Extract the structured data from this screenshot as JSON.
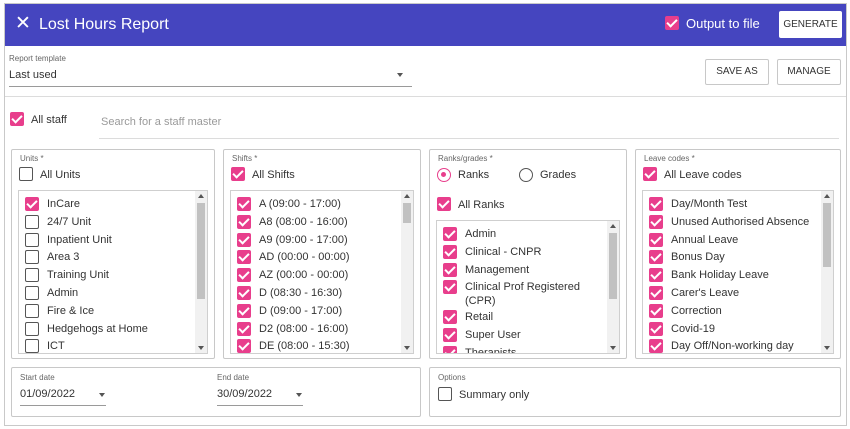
{
  "header": {
    "title": "Lost Hours Report",
    "close_glyph": "✕",
    "output_to_file_label": "Output to file",
    "output_to_file_checked": true,
    "generate_label": "GENERATE"
  },
  "template": {
    "label": "Report template",
    "value": "Last used",
    "save_as_label": "SAVE AS",
    "manage_label": "MANAGE"
  },
  "staff": {
    "all_staff_label": "All staff",
    "all_staff_checked": true,
    "search_placeholder": "Search for a staff master"
  },
  "units": {
    "label": "Units *",
    "all_label": "All Units",
    "all_checked": false,
    "items": [
      {
        "label": "InCare",
        "checked": true
      },
      {
        "label": "24/7 Unit",
        "checked": false
      },
      {
        "label": "Inpatient Unit",
        "checked": false
      },
      {
        "label": "Area 3",
        "checked": false
      },
      {
        "label": "Training Unit",
        "checked": false
      },
      {
        "label": "Admin",
        "checked": false
      },
      {
        "label": "Fire & Ice",
        "checked": false
      },
      {
        "label": "Hedgehogs at Home",
        "checked": false
      },
      {
        "label": "ICT",
        "checked": false
      }
    ]
  },
  "shifts": {
    "label": "Shifts *",
    "all_label": "All Shifts",
    "all_checked": true,
    "items": [
      {
        "label": "A (09:00 - 17:00)",
        "checked": true
      },
      {
        "label": "A8 (08:00 - 16:00)",
        "checked": true
      },
      {
        "label": "A9 (09:00 - 17:00)",
        "checked": true
      },
      {
        "label": "AD (00:00 - 00:00)",
        "checked": true
      },
      {
        "label": "AZ (00:00 - 00:00)",
        "checked": true
      },
      {
        "label": "D (08:30 - 16:30)",
        "checked": true
      },
      {
        "label": "D (09:00 - 17:00)",
        "checked": true
      },
      {
        "label": "D2 (08:00 - 16:00)",
        "checked": true
      },
      {
        "label": "DE (08:00 - 15:30)",
        "checked": true
      }
    ]
  },
  "ranks": {
    "label": "Ranks/grades *",
    "ranks_radio_label": "Ranks",
    "grades_radio_label": "Grades",
    "selected": "Ranks",
    "all_label": "All Ranks",
    "all_checked": true,
    "items": [
      {
        "label": "Admin",
        "checked": true
      },
      {
        "label": "Clinical - CNPR",
        "checked": true
      },
      {
        "label": "Management",
        "checked": true
      },
      {
        "label": "Clinical Prof Registered",
        "label2": "(CPR)",
        "checked": true
      },
      {
        "label": "Retail",
        "checked": true
      },
      {
        "label": "Super User",
        "checked": true
      },
      {
        "label": "Therapists",
        "checked": true
      }
    ]
  },
  "leave": {
    "label": "Leave codes *",
    "all_label": "All Leave codes",
    "all_checked": true,
    "items": [
      {
        "label": "Day/Month Test",
        "checked": true
      },
      {
        "label": "Unused Authorised Absence",
        "checked": true
      },
      {
        "label": "Annual Leave",
        "checked": true
      },
      {
        "label": "Bonus Day",
        "checked": true
      },
      {
        "label": "Bank Holiday Leave",
        "checked": true
      },
      {
        "label": "Carer's Leave",
        "checked": true
      },
      {
        "label": "Correction",
        "checked": true
      },
      {
        "label": "Covid-19",
        "checked": true
      },
      {
        "label": "Day Off/Non-working day",
        "checked": true
      }
    ]
  },
  "dates": {
    "start_label": "Start date",
    "start_value": "01/09/2022",
    "end_label": "End date",
    "end_value": "30/09/2022"
  },
  "options": {
    "label": "Options",
    "summary_only_label": "Summary only",
    "summary_only_checked": false
  },
  "colors": {
    "header_bg": "#4545bf",
    "accent": "#e83e8c"
  }
}
